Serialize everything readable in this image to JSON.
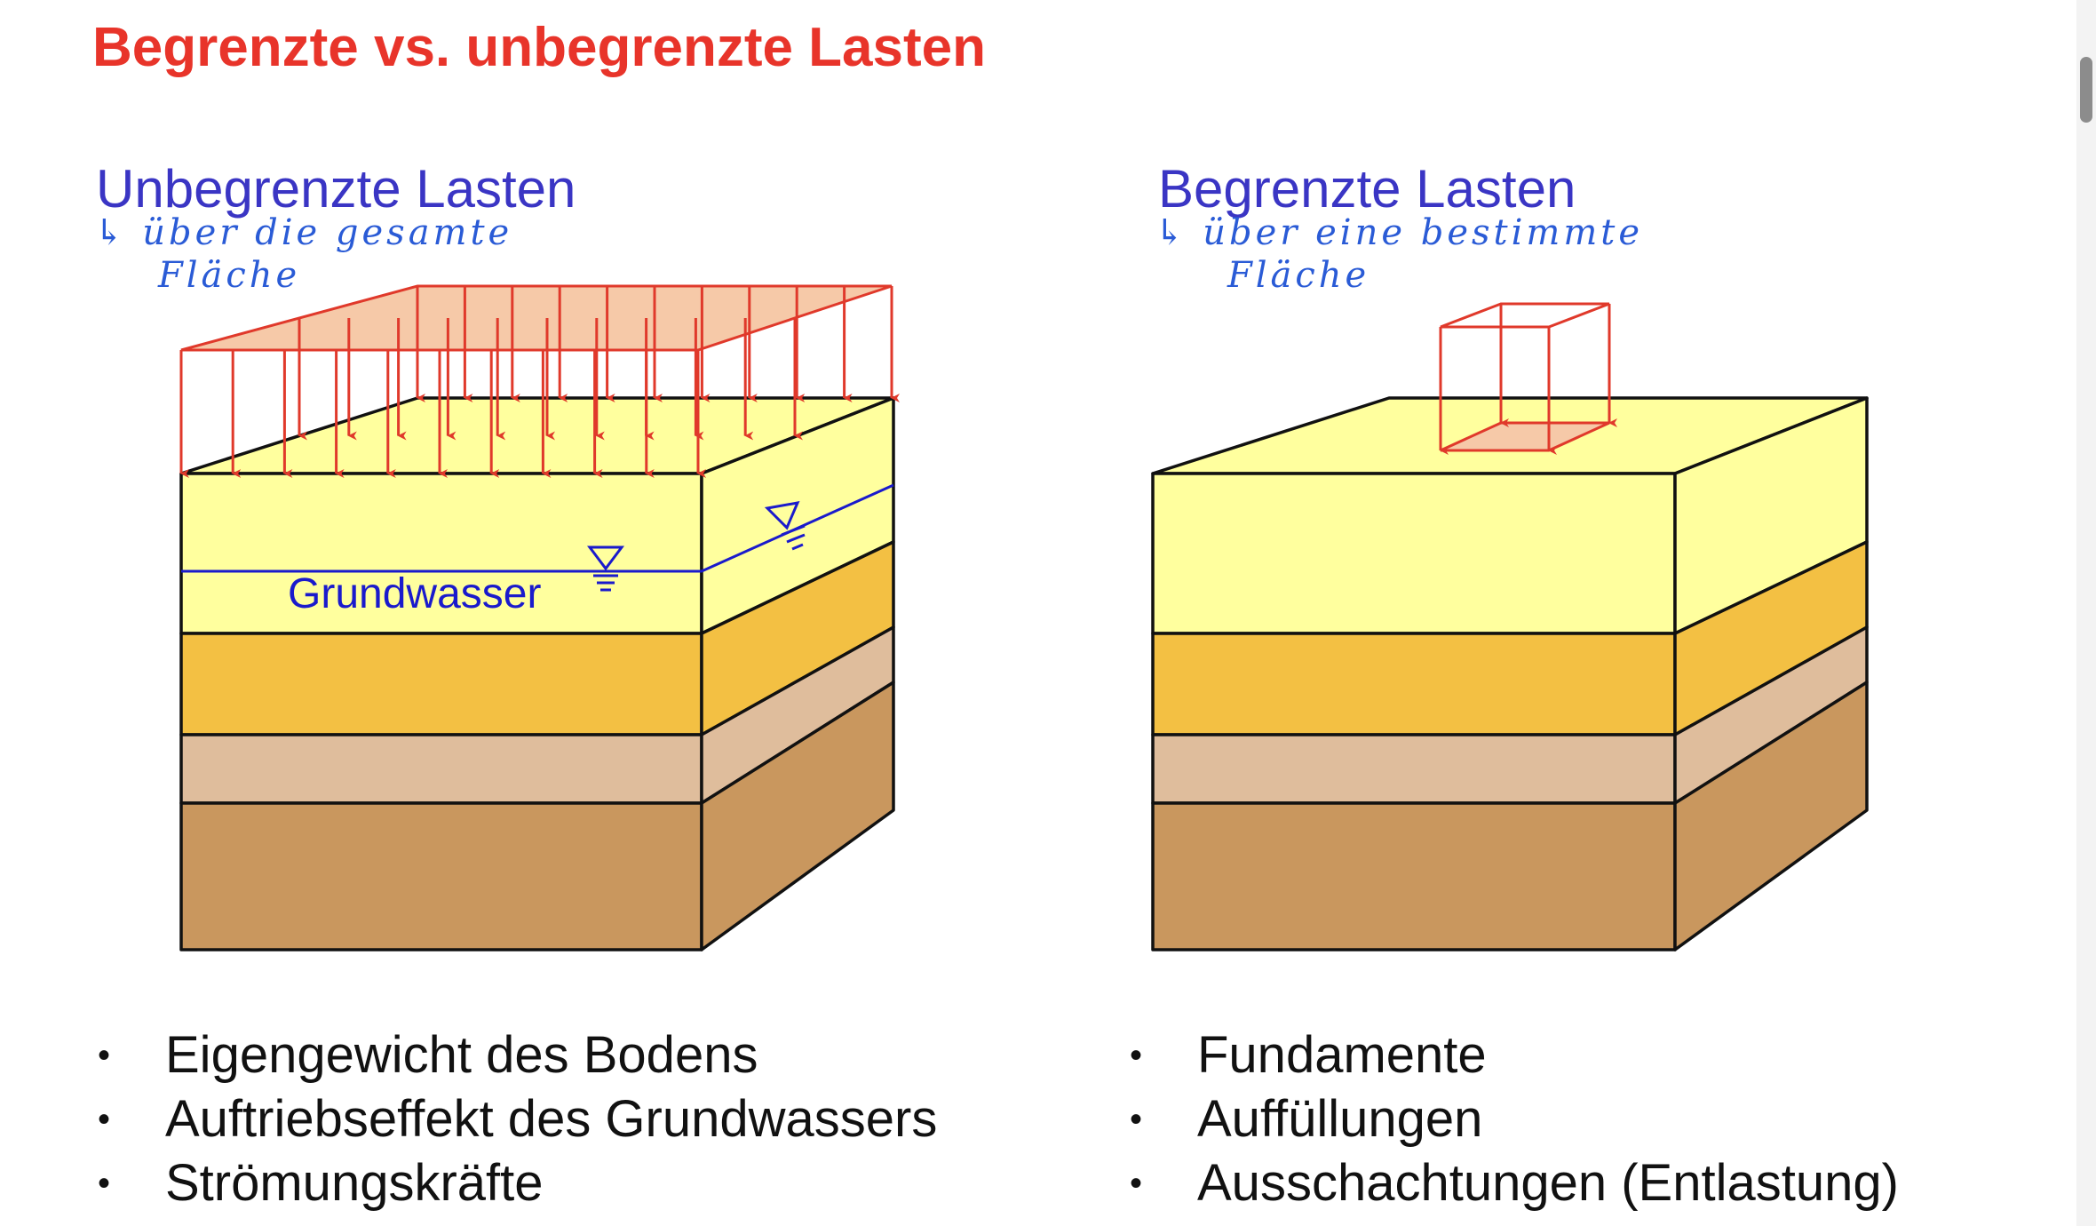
{
  "page": {
    "title": "Begrenzte vs. unbegrenzte Lasten"
  },
  "left": {
    "heading": "Unbegrenzte Lasten",
    "note_line1": "↳ über die gesamte",
    "note_line2": "Fläche",
    "groundwater_label": "Grundwasser",
    "bullets": [
      "Eigengewicht des Bodens",
      "Auftriebseffekt des Grundwassers",
      "Strömungskräfte"
    ]
  },
  "right": {
    "heading": "Begrenzte Lasten",
    "note_line1": "↳ über eine bestimmte",
    "note_line2": "Fläche",
    "bullets": [
      "Fundamente",
      "Auffüllungen",
      "Ausschachtungen (Entlastung)"
    ]
  },
  "colors": {
    "title": "#e8342a",
    "heading": "#3a35c4",
    "handwriting": "#2a5bd6",
    "load": "#e0392b",
    "load_fill": "#f6c9a8",
    "layer1": "#ffff9e",
    "layer2": "#f3c043",
    "layer3": "#dfbd9c",
    "layer4": "#c9975e",
    "water": "#1a1acc"
  }
}
